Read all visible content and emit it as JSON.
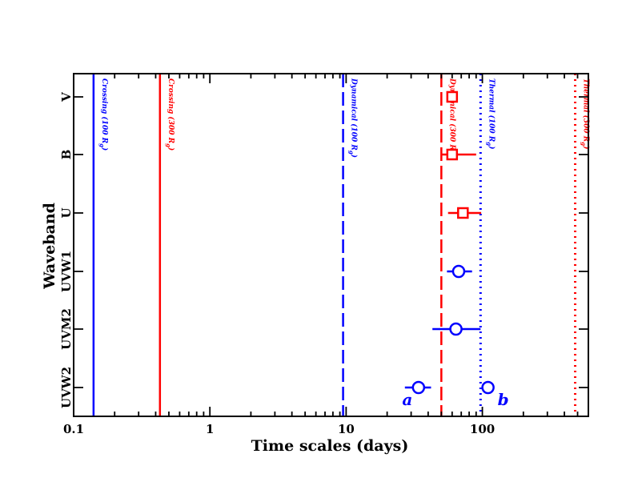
{
  "chart_data": {
    "type": "scatter",
    "title": "",
    "xlabel": "Time scales (days)",
    "ylabel": "Waveband",
    "xscale": "log",
    "xlim": [
      0.1,
      600
    ],
    "x_tick_labels": [
      "0.1",
      "1",
      "10",
      "100"
    ],
    "categories": [
      "UVW2",
      "UVM2",
      "UVW1",
      "U",
      "B",
      "V"
    ],
    "grid": false,
    "colors": {
      "blue": "#0000ff",
      "red": "#ff0000"
    },
    "series": [
      {
        "marker": "square",
        "color": "#ff0000",
        "points": [
          {
            "band": "V",
            "x": 60
          },
          {
            "band": "B",
            "x": 60,
            "xerr_low": 50,
            "xerr_high": 90
          },
          {
            "band": "U",
            "x": 72,
            "xerr_low": 56,
            "xerr_high": 98
          }
        ]
      },
      {
        "marker": "circle",
        "color": "#0000ff",
        "points": [
          {
            "band": "UVW1",
            "x": 67,
            "xerr_low": 55,
            "xerr_high": 84
          },
          {
            "band": "UVM2",
            "x": 64,
            "xerr_low": 43,
            "xerr_high": 97
          },
          {
            "band": "UVW2",
            "x": 34,
            "xerr_low": 27,
            "xerr_high": 42,
            "label": "a"
          },
          {
            "band": "UVW2",
            "x": 110,
            "label": "b"
          }
        ]
      }
    ],
    "reference_lines": [
      {
        "x": 0.14,
        "color": "#0000ff",
        "style": "solid",
        "label": "Crossing (100 R",
        "sub": "g",
        "close": ")"
      },
      {
        "x": 0.43,
        "color": "#ff0000",
        "style": "solid",
        "label": "Crossing (300 R",
        "sub": "g",
        "close": ")"
      },
      {
        "x": 9.5,
        "color": "#0000ff",
        "style": "dashed",
        "label": "Dynamical (100 R",
        "sub": "g",
        "close": ")"
      },
      {
        "x": 50,
        "color": "#ff0000",
        "style": "dashed",
        "label": "Dynamical (300 R",
        "sub": "g",
        "close": ")"
      },
      {
        "x": 97,
        "color": "#0000ff",
        "style": "dotted",
        "label": "Thermal (100 R",
        "sub": "g",
        "close": ")"
      },
      {
        "x": 480,
        "color": "#ff0000",
        "style": "dotted",
        "label": "Thermal (300 R",
        "sub": "g",
        "close": ")"
      }
    ]
  }
}
